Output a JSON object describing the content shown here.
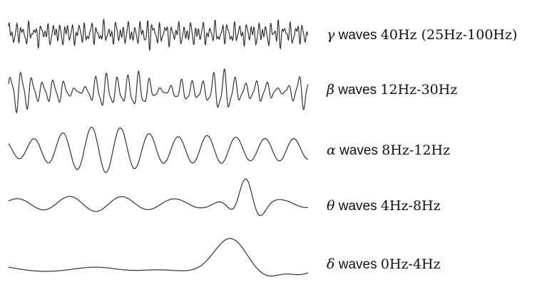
{
  "line_color": "#333333",
  "bands": [
    {
      "id": "gamma",
      "symbol": "γ",
      "word": "waves",
      "range": "40Hz (25Hz-100Hz)"
    },
    {
      "id": "beta",
      "symbol": "β",
      "word": "waves",
      "range": "12Hz-30Hz"
    },
    {
      "id": "alpha",
      "symbol": "α",
      "word": "waves",
      "range": "8Hz-12Hz"
    },
    {
      "id": "theta",
      "symbol": "θ",
      "word": "waves",
      "range": "4Hz-8Hz"
    },
    {
      "id": "delta",
      "symbol": "δ",
      "word": "waves",
      "range": "0Hz-4Hz"
    }
  ]
}
